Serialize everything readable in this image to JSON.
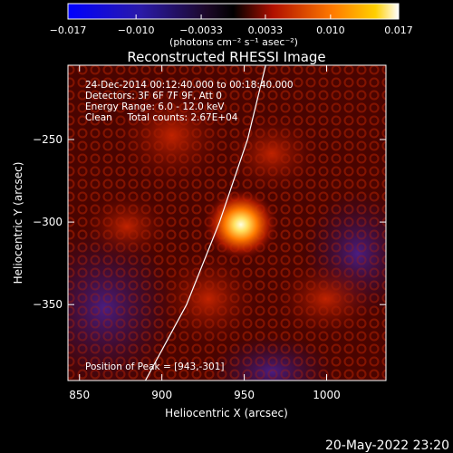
{
  "chart_data": {
    "type": "heatmap",
    "title": "Reconstructed RHESSI Image",
    "xlabel": "Heliocentric X (arcsec)",
    "ylabel": "Heliocentric Y (arcsec)",
    "xlim": [
      843,
      1036
    ],
    "ylim": [
      -396,
      -205
    ],
    "x_ticks": [
      850,
      900,
      950,
      1000
    ],
    "y_ticks": [
      -250,
      -300,
      -350
    ],
    "colorbar": {
      "range": [
        -0.017,
        0.017
      ],
      "ticks": [
        -0.017,
        -0.01,
        -0.0033,
        0.0033,
        0.01,
        0.017
      ],
      "tick_labels": [
        "−0.017",
        "−0.010",
        "−0.0033",
        "0.0033",
        "0.010",
        "0.017"
      ],
      "unit_label": "(photons cm⁻² s⁻¹ asec⁻²)",
      "colors": [
        "#0000ff",
        "#30106a",
        "#000000",
        "#ff3000",
        "#ffb000",
        "#ffffff"
      ]
    },
    "annotations": {
      "line1": "24-Dec-2014 00:12:40.000 to 00:18:40.000",
      "line2": "Detectors: 3F 6F 7F 9F, Att 0",
      "line3": "Energy Range: 6.0 - 12.0 keV",
      "line4": "Clean     Total counts: 2.67E+04",
      "peak": "Position of Peak = [943,-301]"
    },
    "peak": {
      "x": 943,
      "y": -301
    },
    "limb_curve": [
      [
        890,
        -396
      ],
      [
        915,
        -350
      ],
      [
        935,
        -300
      ],
      [
        952,
        -250
      ],
      [
        963,
        -205
      ]
    ]
  },
  "footer": {
    "date": "20-May-2022 23:20"
  }
}
